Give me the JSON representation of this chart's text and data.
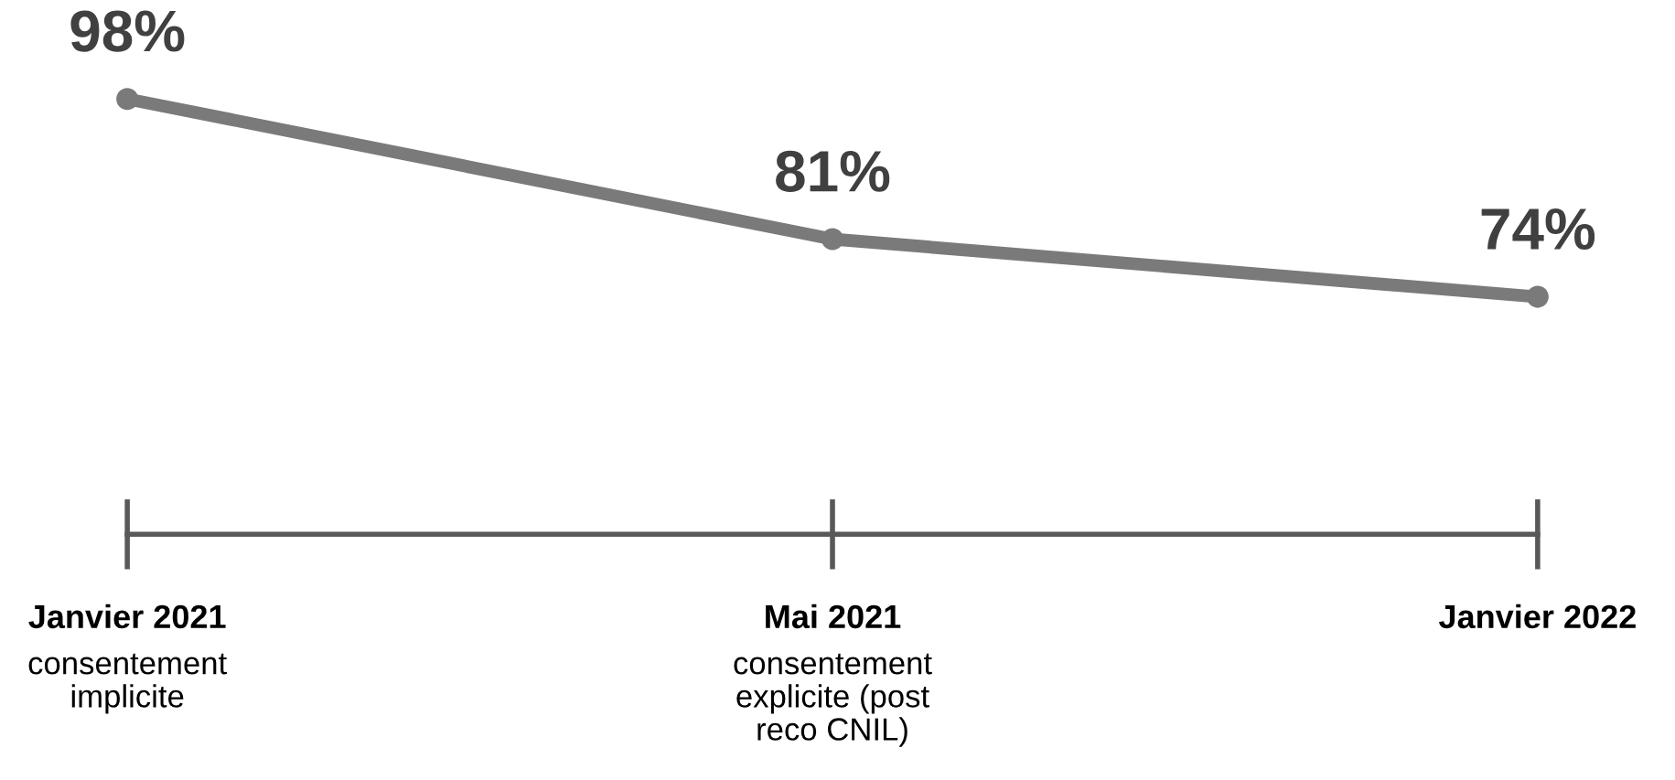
{
  "chart_data": {
    "type": "line",
    "categories": [
      "Janvier 2021\nconsentement\nimplicite",
      "Mai 2021\nconsentement\nexplicite (post\nreco CNIL)",
      "Janvier 2022"
    ],
    "series": [
      {
        "color": "#7a7a7a",
        "values": [
          98,
          81,
          74
        ],
        "value_labels": [
          "98%",
          "81%",
          "74%"
        ]
      }
    ],
    "tick_labels": "x",
    "marker": "circle",
    "line_style": "solid",
    "grid": false
  }
}
